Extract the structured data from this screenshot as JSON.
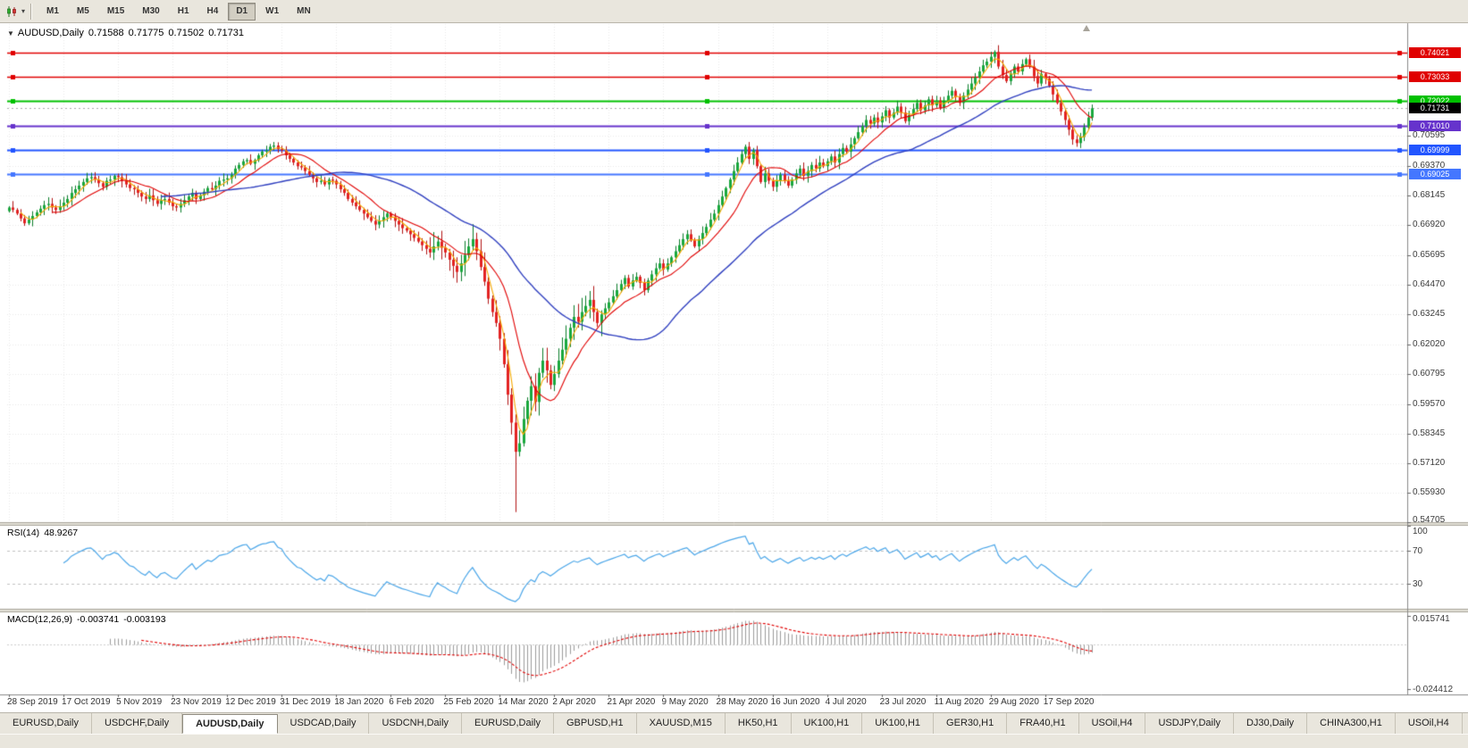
{
  "toolbar": {
    "timeframes": [
      "M1",
      "M5",
      "M15",
      "M30",
      "H1",
      "H4",
      "D1",
      "W1",
      "MN"
    ],
    "active_timeframe": "D1"
  },
  "chart_header": {
    "symbol_period": "AUDUSD,Daily",
    "open": "0.71588",
    "high": "0.71775",
    "low": "0.71502",
    "close": "0.71731"
  },
  "price_scale": {
    "ticks": [
      "0.70595",
      "0.69370",
      "0.68145",
      "0.66920",
      "0.65695",
      "0.64470",
      "0.63245",
      "0.62020",
      "0.60795",
      "0.59570",
      "0.58345",
      "0.57120",
      "0.55930",
      "0.54705"
    ]
  },
  "indicators": {
    "rsi": {
      "name": "RSI(14)",
      "value": "48.9267",
      "period": 14,
      "scale": [
        "100",
        "70",
        "30"
      ],
      "levels": [
        70,
        30
      ],
      "line_color": "#4ba6e8"
    },
    "macd": {
      "name": "MACD(12,26,9)",
      "value_main": "-0.003741",
      "value_signal": "-0.003193",
      "scale_top": "0.015741",
      "scale_bottom": "-0.024412",
      "histogram_color": "#9b9b9b",
      "signal_color": "#e00000"
    }
  },
  "tabs": {
    "active_index": 2,
    "items": [
      "EURUSD,Daily",
      "USDCHF,Daily",
      "AUDUSD,Daily",
      "USDCAD,Daily",
      "USDCNH,Daily",
      "EURUSD,Daily",
      "GBPUSD,H1",
      "XAUUSD,M15",
      "HK50,H1",
      "UK100,H1",
      "UK100,H1",
      "GER30,H1",
      "FRA40,H1",
      "USOil,H4",
      "USDJPY,Daily",
      "DJ30,Daily",
      "CHINA300,H1",
      "USOil,H4"
    ]
  },
  "chart_data": {
    "type": "candlestick",
    "symbol": "AUDUSD",
    "timeframe": "Daily",
    "up_color": "#19a83d",
    "down_color": "#e32222",
    "x_tick_labels": [
      "28 Sep 2019",
      "17 Oct 2019",
      "5 Nov 2019",
      "23 Nov 2019",
      "12 Dec 2019",
      "31 Dec 2019",
      "18 Jan 2020",
      "6 Feb 2020",
      "25 Feb 2020",
      "14 Mar 2020",
      "2 Apr 2020",
      "21 Apr 2020",
      "9 May 2020",
      "28 May 2020",
      "16 Jun 2020",
      "4 Jul 2020",
      "23 Jul 2020",
      "11 Aug 2020",
      "29 Aug 2020",
      "17 Sep 2020"
    ],
    "x_tick_indices": [
      0,
      14,
      28,
      42,
      56,
      70,
      84,
      98,
      112,
      126,
      140,
      154,
      168,
      182,
      196,
      210,
      224,
      238,
      252,
      266
    ],
    "y_range": {
      "top": 0.751,
      "bottom": 0.5463
    },
    "current_price": 0.71731,
    "current_price_label": "0.71731",
    "levels": [
      {
        "price": 0.74021,
        "label": "0.74021",
        "color": "#e00000",
        "width": 1.3
      },
      {
        "price": 0.73033,
        "label": "0.73033",
        "color": "#e00000",
        "width": 1.3
      },
      {
        "price": 0.72022,
        "label": "0.72022",
        "color": "#00c000",
        "width": 2
      },
      {
        "price": 0.7101,
        "label": "0.71010",
        "color": "#6633cc",
        "width": 2
      },
      {
        "price": 0.69999,
        "label": "0.69999",
        "color": "#2255ff",
        "width": 2
      },
      {
        "price": 0.69025,
        "label": "0.69025",
        "color": "#4477ff",
        "width": 2
      }
    ],
    "moving_averages": [
      {
        "period": 4,
        "color": "#f5a800"
      },
      {
        "period": 12,
        "color": "#e00000"
      },
      {
        "period": 40,
        "color": "#2f3fbf"
      }
    ],
    "low_overrides": {
      "130": 0.5512
    },
    "closes": [
      0.6765,
      0.6755,
      0.674,
      0.672,
      0.67,
      0.6715,
      0.673,
      0.6745,
      0.676,
      0.6775,
      0.678,
      0.6765,
      0.6755,
      0.677,
      0.6785,
      0.68,
      0.6825,
      0.684,
      0.6855,
      0.687,
      0.6885,
      0.689,
      0.688,
      0.6865,
      0.685,
      0.6875,
      0.688,
      0.6895,
      0.689,
      0.6875,
      0.686,
      0.6845,
      0.684,
      0.6825,
      0.681,
      0.68,
      0.6815,
      0.6795,
      0.678,
      0.6795,
      0.68,
      0.6785,
      0.677,
      0.6765,
      0.678,
      0.6795,
      0.681,
      0.6825,
      0.68,
      0.6815,
      0.683,
      0.6845,
      0.684,
      0.6855,
      0.6875,
      0.688,
      0.6885,
      0.69,
      0.6925,
      0.694,
      0.6955,
      0.696,
      0.6945,
      0.696,
      0.698,
      0.6995,
      0.7,
      0.7015,
      0.702,
      0.7005,
      0.7,
      0.698,
      0.6965,
      0.695,
      0.6935,
      0.693,
      0.6915,
      0.69,
      0.6885,
      0.687,
      0.6875,
      0.686,
      0.688,
      0.6875,
      0.686,
      0.684,
      0.6825,
      0.68,
      0.6785,
      0.677,
      0.6755,
      0.674,
      0.6725,
      0.671,
      0.6695,
      0.671,
      0.6725,
      0.674,
      0.6725,
      0.671,
      0.6695,
      0.668,
      0.667,
      0.6655,
      0.664,
      0.6625,
      0.661,
      0.6595,
      0.658,
      0.6605,
      0.6625,
      0.66,
      0.658,
      0.655,
      0.6525,
      0.65,
      0.6535,
      0.657,
      0.6605,
      0.6635,
      0.6585,
      0.652,
      0.646,
      0.639,
      0.6335,
      0.629,
      0.6225,
      0.612,
      0.5995,
      0.588,
      0.576,
      0.5795,
      0.5895,
      0.597,
      0.603,
      0.5965,
      0.6085,
      0.6135,
      0.6095,
      0.6035,
      0.608,
      0.6135,
      0.618,
      0.6225,
      0.627,
      0.6315,
      0.6295,
      0.6335,
      0.636,
      0.6385,
      0.6335,
      0.629,
      0.6325,
      0.635,
      0.6375,
      0.64,
      0.6425,
      0.645,
      0.6475,
      0.644,
      0.6465,
      0.648,
      0.6455,
      0.6425,
      0.6465,
      0.649,
      0.6515,
      0.6535,
      0.651,
      0.6535,
      0.656,
      0.6585,
      0.661,
      0.6635,
      0.6655,
      0.663,
      0.6605,
      0.6635,
      0.666,
      0.6685,
      0.6715,
      0.674,
      0.6775,
      0.681,
      0.6845,
      0.688,
      0.6915,
      0.695,
      0.6985,
      0.7015,
      0.6965,
      0.7,
      0.6935,
      0.687,
      0.6905,
      0.6875,
      0.685,
      0.6875,
      0.69,
      0.6875,
      0.6855,
      0.688,
      0.6905,
      0.6925,
      0.6895,
      0.6915,
      0.694,
      0.6925,
      0.695,
      0.6935,
      0.6955,
      0.6975,
      0.695,
      0.6985,
      0.701,
      0.6995,
      0.7025,
      0.705,
      0.7075,
      0.71,
      0.7125,
      0.711,
      0.7135,
      0.7115,
      0.714,
      0.7165,
      0.7135,
      0.7155,
      0.718,
      0.7155,
      0.712,
      0.7145,
      0.717,
      0.7195,
      0.7165,
      0.7185,
      0.721,
      0.7185,
      0.7205,
      0.7175,
      0.72,
      0.7225,
      0.7245,
      0.722,
      0.7195,
      0.7225,
      0.725,
      0.7275,
      0.73,
      0.7325,
      0.735,
      0.7365,
      0.7385,
      0.7405,
      0.7345,
      0.731,
      0.7285,
      0.7315,
      0.7345,
      0.7325,
      0.7355,
      0.7375,
      0.7345,
      0.7305,
      0.7275,
      0.7315,
      0.7295,
      0.7265,
      0.723,
      0.7195,
      0.716,
      0.7125,
      0.7085,
      0.7045,
      0.703,
      0.7055,
      0.7095,
      0.7135,
      0.71731
    ]
  }
}
